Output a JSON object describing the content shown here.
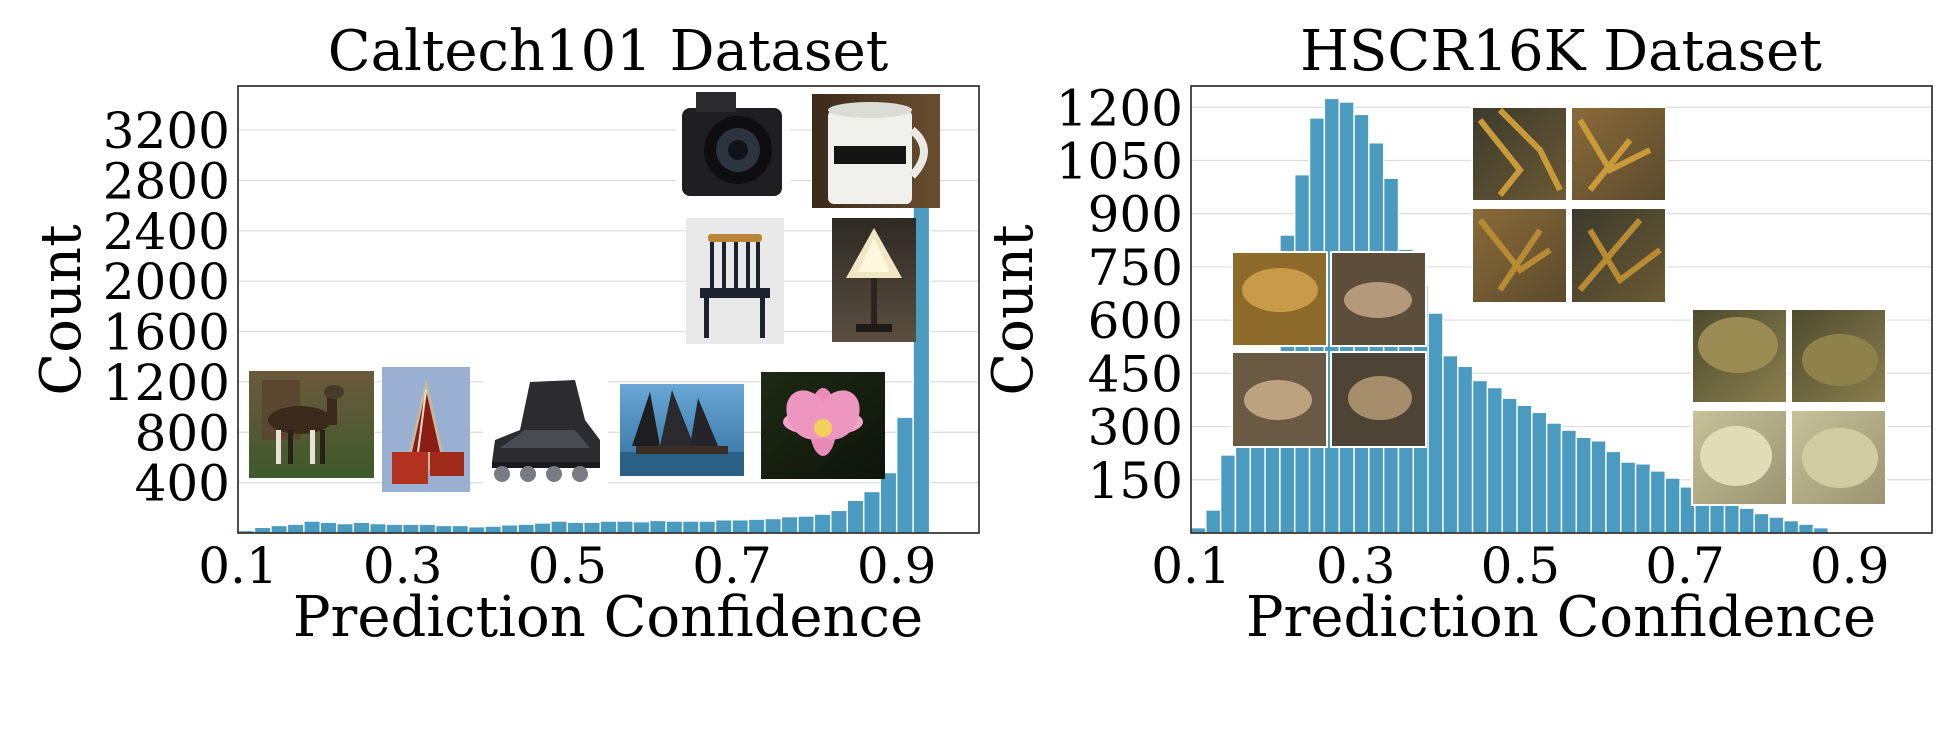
{
  "figure": {
    "colors": {
      "bar": "#4a9bbf",
      "grid": "#dddddd",
      "frame": "#222222"
    }
  },
  "chart_data": [
    {
      "type": "bar",
      "title": "Caltech101 Dataset",
      "xlabel": "Prediction Confidence",
      "ylabel": "Count",
      "xlim": [
        0.1,
        1.0
      ],
      "ylim": [
        0,
        3550
      ],
      "xticks": [
        0.1,
        0.3,
        0.5,
        0.7,
        0.9
      ],
      "xtick_labels": [
        "0.1",
        "0.3",
        "0.5",
        "0.7",
        "0.9"
      ],
      "yticks": [
        400,
        800,
        1200,
        1600,
        2000,
        2400,
        2800,
        3200
      ],
      "ytick_labels": [
        "400",
        "800",
        "1200",
        "1600",
        "2000",
        "2400",
        "2800",
        "3200"
      ],
      "grid": true,
      "bin_start": 0.1,
      "bin_width": 0.02,
      "values": [
        20,
        45,
        60,
        70,
        95,
        85,
        75,
        85,
        75,
        70,
        70,
        70,
        60,
        60,
        50,
        55,
        65,
        70,
        80,
        95,
        85,
        85,
        95,
        95,
        90,
        100,
        95,
        95,
        95,
        105,
        105,
        110,
        115,
        130,
        135,
        150,
        180,
        260,
        330,
        480,
        920,
        3360
      ],
      "inset_images": [
        "okapi-photo",
        "metronome-photo",
        "inline-skate-photo",
        "sailboat-photo",
        "lotus-photo",
        "camera-photo",
        "mug-photo",
        "chair-photo",
        "lamp-photo"
      ]
    },
    {
      "type": "bar",
      "title": "HSCR16K Dataset",
      "xlabel": "Prediction Confidence",
      "ylabel": "Count",
      "xlim": [
        0.1,
        1.0
      ],
      "ylim": [
        0,
        1260
      ],
      "xticks": [
        0.1,
        0.3,
        0.5,
        0.7,
        0.9
      ],
      "xtick_labels": [
        "0.1",
        "0.3",
        "0.5",
        "0.7",
        "0.9"
      ],
      "yticks": [
        150,
        300,
        450,
        600,
        750,
        900,
        1050,
        1200
      ],
      "ytick_labels": [
        "150",
        "300",
        "450",
        "600",
        "750",
        "900",
        "1050",
        "1200"
      ],
      "grid": true,
      "bin_start": 0.1,
      "bin_width": 0.018,
      "values": [
        15,
        65,
        220,
        260,
        290,
        320,
        840,
        1010,
        1170,
        1225,
        1215,
        1180,
        1100,
        1000,
        800,
        700,
        620,
        500,
        470,
        430,
        410,
        380,
        360,
        340,
        310,
        290,
        270,
        260,
        230,
        200,
        195,
        175,
        155,
        130,
        110,
        100,
        85,
        70,
        55,
        45,
        35,
        25,
        15
      ],
      "inset_images": [
        "coral-branching-1",
        "coral-branching-2",
        "coral-branching-3",
        "coral-branching-4",
        "coral-plate-1",
        "coral-plate-2",
        "coral-plate-3",
        "coral-plate-4",
        "coral-brain-1",
        "coral-brain-2",
        "coral-brain-3",
        "coral-brain-4"
      ]
    }
  ]
}
